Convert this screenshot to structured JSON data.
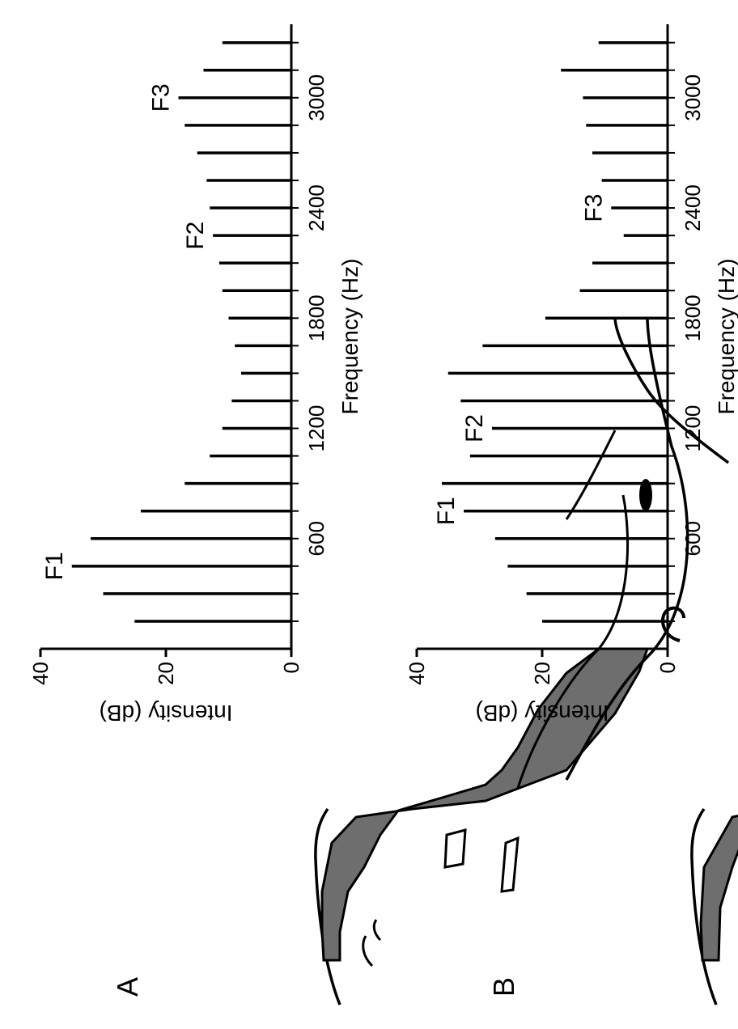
{
  "panels": [
    {
      "letter": "A"
    },
    {
      "letter": "B"
    }
  ],
  "colors": {
    "ink": "#000000",
    "tract_fill": "#6e6e6e",
    "background": "#ffffff"
  },
  "chart_data": [
    {
      "type": "bar",
      "panel": "A",
      "xlabel": "Frequency (Hz)",
      "ylabel": "Intensity (dB)",
      "xlim": [
        0,
        3400
      ],
      "ylim": [
        0,
        40
      ],
      "xticks": [
        600,
        1200,
        1800,
        2400,
        3000
      ],
      "xtick_labels": [
        "600",
        "1200",
        "1800",
        "2400",
        "3000"
      ],
      "yticks": [
        0,
        20,
        40
      ],
      "ytick_labels": [
        "0",
        "20",
        "40"
      ],
      "x": [
        150,
        300,
        450,
        600,
        750,
        900,
        1050,
        1200,
        1350,
        1500,
        1650,
        1800,
        1950,
        2100,
        2250,
        2400,
        2550,
        2700,
        2850,
        3000,
        3150,
        3300
      ],
      "values": [
        25,
        30,
        35,
        32,
        24,
        17,
        13,
        11,
        9.5,
        8,
        9,
        10,
        11,
        11.5,
        12.5,
        13,
        13.5,
        15,
        17,
        18,
        14,
        11
      ],
      "formants": [
        {
          "label": "F1",
          "x": 450
        },
        {
          "label": "F2",
          "x": 2250
        },
        {
          "label": "F3",
          "x": 3000
        }
      ]
    },
    {
      "type": "bar",
      "panel": "B",
      "xlabel": "Frequency (Hz)",
      "ylabel": "Intensity (dB)",
      "xlim": [
        0,
        3400
      ],
      "ylim": [
        0,
        40
      ],
      "xticks": [
        600,
        1200,
        1800,
        2400,
        3000
      ],
      "xtick_labels": [
        "600",
        "1200",
        "1800",
        "2400",
        "3000"
      ],
      "yticks": [
        0,
        20,
        40
      ],
      "ytick_labels": [
        "0",
        "20",
        "40"
      ],
      "x": [
        150,
        300,
        450,
        600,
        750,
        900,
        1050,
        1200,
        1350,
        1500,
        1650,
        1800,
        1950,
        2100,
        2250,
        2400,
        2550,
        2700,
        2850,
        3000,
        3150,
        3300
      ],
      "values": [
        20,
        22.5,
        25.5,
        27.5,
        32.5,
        36,
        31.5,
        28,
        33,
        35,
        29.5,
        19.5,
        14,
        12,
        7,
        9,
        10.5,
        12,
        13,
        13.5,
        17,
        11
      ],
      "formants": [
        {
          "label": "F1",
          "x": 750
        },
        {
          "label": "F2",
          "x": 1200
        },
        {
          "label": "F3",
          "x": 2400
        }
      ]
    }
  ]
}
